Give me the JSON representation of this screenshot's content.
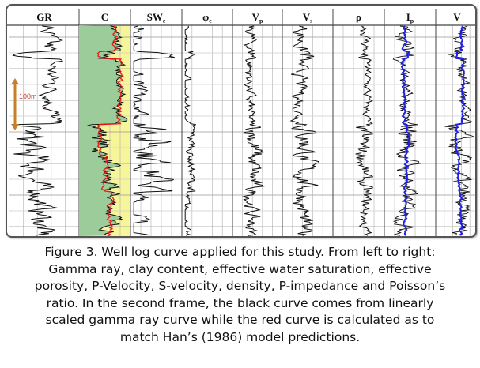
{
  "tracks": [
    {
      "label": "GR",
      "sub": ""
    },
    {
      "label": "C",
      "sub": ""
    },
    {
      "label": "SW",
      "sub": "e"
    },
    {
      "label": "φ",
      "sub": "e"
    },
    {
      "label": "V",
      "sub": "p"
    },
    {
      "label": "V",
      "sub": "s"
    },
    {
      "label": "ρ",
      "sub": ""
    },
    {
      "label": "I",
      "sub": "p"
    },
    {
      "label": "V",
      "sub": ""
    }
  ],
  "scale_label": "100m",
  "colors": {
    "clay": "#9ccc9a",
    "sand": "#f7f59a",
    "red_curve": "#e8191b",
    "blue_curve": "#2020e0",
    "scale_bar": "#c87f2a"
  },
  "caption": [
    "Figure 3. Well log curve applied for this study. From left to right:",
    "Gamma ray, clay content, effective water saturation, effective",
    "porosity, P-Velocity, S-velocity, density, P-impedance and Poisson’s",
    "ratio. In the second frame, the black curve comes from linearly",
    "scaled gamma ray curve while the red curve is calculated as to",
    "match Han’s (1986) model predictions."
  ]
}
